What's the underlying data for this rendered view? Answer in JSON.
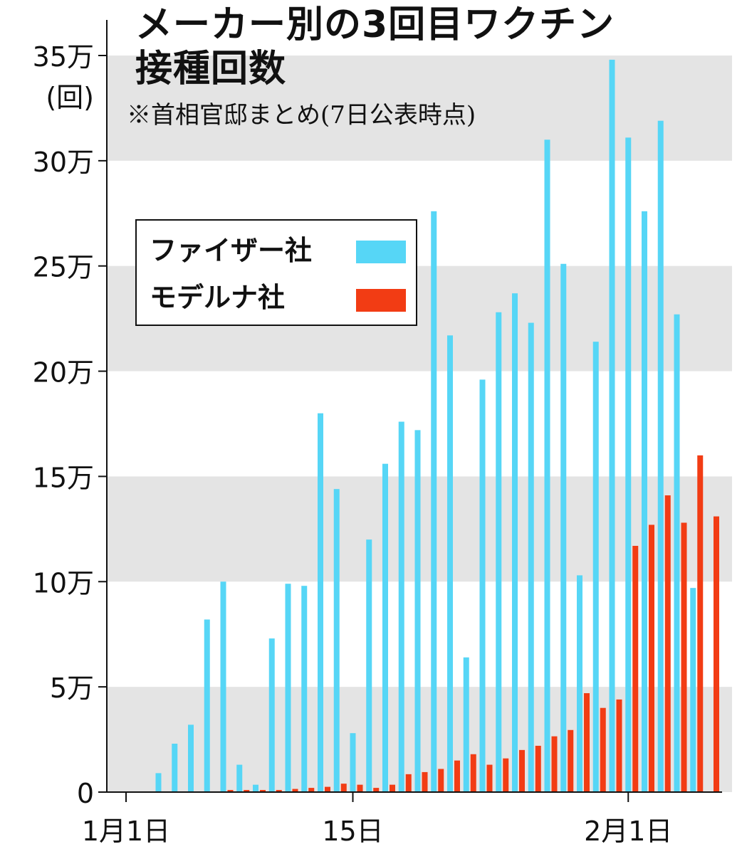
{
  "colors": {
    "pfizer": "#56d6f6",
    "moderna": "#f23c14",
    "band": "#e4e4e4",
    "axis": "#111111"
  },
  "chart_data": {
    "type": "bar",
    "title_lines": [
      "メーカー別の3回目ワクチン",
      "接種回数"
    ],
    "subtitle": "※首相官邸まとめ(7日公表時点)",
    "y_unit_label": "(回)",
    "y_tick_labels": [
      "0",
      "5万",
      "10万",
      "15万",
      "20万",
      "25万",
      "30万",
      "35万"
    ],
    "y_tick_values": [
      0,
      50000,
      100000,
      150000,
      200000,
      250000,
      300000,
      350000
    ],
    "ylim": [
      0,
      350000
    ],
    "x_tick_labels": [
      {
        "day": 1,
        "label": "1月1日"
      },
      {
        "day": 15,
        "label": "15日"
      },
      {
        "day": 32,
        "label": "2月1日"
      }
    ],
    "x_domain_days": [
      0.5,
      38.5
    ],
    "legend_position": "upper-left",
    "series": [
      {
        "name": "ファイザー社",
        "color_key": "pfizer",
        "days": [
          1,
          2,
          3,
          4,
          5,
          6,
          7,
          8,
          9,
          10,
          11,
          12,
          13,
          14,
          15,
          16,
          17,
          18,
          19,
          20,
          21,
          22,
          23,
          24,
          25,
          26,
          27,
          28,
          29,
          30,
          31,
          32,
          33,
          34,
          35,
          36,
          37
        ],
        "values": [
          0,
          0,
          9000,
          23000,
          32000,
          82000,
          100000,
          13000,
          3500,
          73000,
          99000,
          98000,
          180000,
          144000,
          28000,
          120000,
          156000,
          176000,
          172000,
          276000,
          217000,
          64000,
          196000,
          228000,
          237000,
          223000,
          310000,
          251000,
          103000,
          214000,
          348000,
          311000,
          276000,
          319000,
          227000,
          97000,
          0
        ]
      },
      {
        "name": "モデルナ社",
        "color_key": "moderna",
        "days": [
          1,
          2,
          3,
          4,
          5,
          6,
          7,
          8,
          9,
          10,
          11,
          12,
          13,
          14,
          15,
          16,
          17,
          18,
          19,
          20,
          21,
          22,
          23,
          24,
          25,
          26,
          27,
          28,
          29,
          30,
          31,
          32,
          33,
          34,
          35,
          36,
          37
        ],
        "values": [
          0,
          0,
          0,
          0,
          0,
          0,
          1000,
          1000,
          1000,
          1000,
          1500,
          2000,
          2500,
          4000,
          3500,
          2000,
          3500,
          8500,
          9500,
          11000,
          15000,
          18000,
          13000,
          16000,
          20000,
          22000,
          26500,
          29500,
          47000,
          40000,
          44000,
          117000,
          127000,
          141000,
          128000,
          160000,
          131000
        ]
      }
    ]
  }
}
